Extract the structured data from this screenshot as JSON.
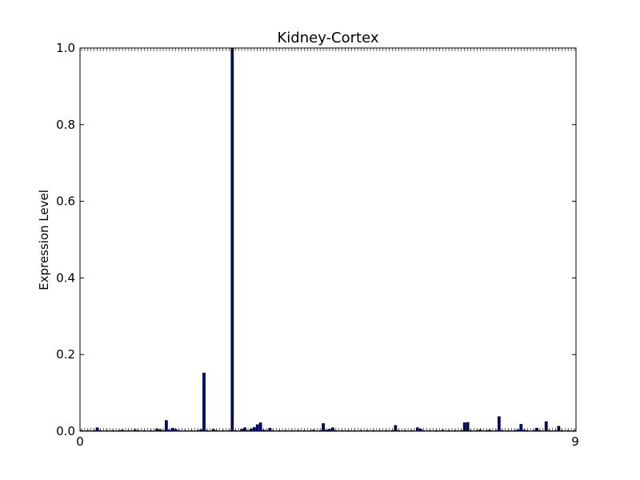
{
  "chart_data": {
    "type": "bar",
    "title": "Kidney-Cortex",
    "xlabel": "",
    "ylabel": "Expression Level",
    "ylim": [
      0,
      1.0
    ],
    "yticks": [
      0.0,
      0.2,
      0.4,
      0.6,
      0.8,
      1.0
    ],
    "ytick_labels": [
      "0.0",
      "0.2",
      "0.4",
      "0.6",
      "0.8",
      "1.0"
    ],
    "grid": false,
    "bar_color": "#00008b",
    "x_first_label": "0",
    "x_last_label": "9",
    "values": [
      0.002,
      0.001,
      0.002,
      0.001,
      0.002,
      0.009,
      0.002,
      0.001,
      0.002,
      0.001,
      0.002,
      0.001,
      0.002,
      0.003,
      0.001,
      0.002,
      0.001,
      0.004,
      0.002,
      0.001,
      0.002,
      0.001,
      0.002,
      0.001,
      0.006,
      0.004,
      0.002,
      0.028,
      0.003,
      0.008,
      0.005,
      0.002,
      0.001,
      0.002,
      0.001,
      0.002,
      0.001,
      0.002,
      0.004,
      0.152,
      0.002,
      0.001,
      0.005,
      0.002,
      0.001,
      0.002,
      0.001,
      0.002,
      1.0,
      0.002,
      0.001,
      0.005,
      0.009,
      0.002,
      0.006,
      0.01,
      0.017,
      0.022,
      0.003,
      0.002,
      0.008,
      0.002,
      0.001,
      0.002,
      0.001,
      0.002,
      0.001,
      0.002,
      0.001,
      0.002,
      0.001,
      0.002,
      0.001,
      0.002,
      0.003,
      0.001,
      0.002,
      0.02,
      0.003,
      0.005,
      0.009,
      0.002,
      0.001,
      0.002,
      0.001,
      0.002,
      0.001,
      0.002,
      0.001,
      0.002,
      0.001,
      0.002,
      0.001,
      0.002,
      0.001,
      0.002,
      0.001,
      0.002,
      0.001,
      0.002,
      0.015,
      0.002,
      0.001,
      0.002,
      0.001,
      0.002,
      0.001,
      0.009,
      0.006,
      0.002,
      0.001,
      0.002,
      0.001,
      0.002,
      0.001,
      0.003,
      0.001,
      0.002,
      0.001,
      0.002,
      0.001,
      0.002,
      0.022,
      0.023,
      0.002,
      0.001,
      0.002,
      0.004,
      0.001,
      0.002,
      0.003,
      0.001,
      0.002,
      0.038,
      0.002,
      0.001,
      0.002,
      0.001,
      0.002,
      0.004,
      0.018,
      0.003,
      0.002,
      0.001,
      0.002,
      0.008,
      0.002,
      0.001,
      0.025,
      0.002,
      0.001,
      0.002,
      0.013,
      0.002,
      0.001,
      0.002,
      0.001,
      0.002
    ]
  }
}
